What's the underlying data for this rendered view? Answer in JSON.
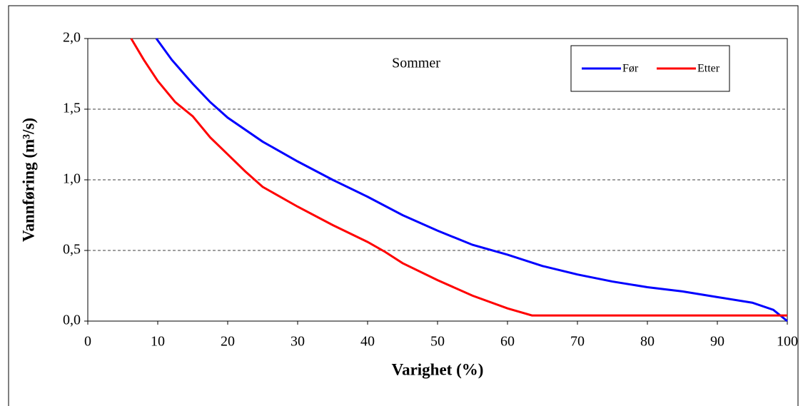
{
  "chart_data": {
    "type": "line",
    "title": "Sommer",
    "xlabel": "Varighet (%)",
    "ylabel": "Vannføring (m³/s)",
    "xlim": [
      0,
      100
    ],
    "xticks": [
      0,
      10,
      20,
      30,
      40,
      50,
      60,
      70,
      80,
      90,
      100
    ],
    "ylim": [
      0,
      2
    ],
    "yticks": [
      {
        "value": 0,
        "label": "0,0"
      },
      {
        "value": 0.5,
        "label": "0,5"
      },
      {
        "value": 1,
        "label": "1,0"
      },
      {
        "value": 1.5,
        "label": "1,5"
      },
      {
        "value": 2,
        "label": "2,0"
      }
    ],
    "grid": true,
    "legend": "upper right",
    "series": [
      {
        "name": "Før",
        "color": "#0000ff",
        "x": [
          9.8,
          12,
          15,
          17.5,
          20,
          25,
          30,
          35,
          40,
          45,
          50,
          55,
          60,
          65,
          70,
          75,
          80,
          85,
          90,
          95,
          98,
          100
        ],
        "values": [
          2.0,
          1.85,
          1.68,
          1.55,
          1.44,
          1.27,
          1.13,
          1.0,
          0.88,
          0.75,
          0.64,
          0.54,
          0.47,
          0.39,
          0.33,
          0.28,
          0.24,
          0.21,
          0.17,
          0.13,
          0.08,
          0.0
        ]
      },
      {
        "name": "Etter",
        "color": "#ff0000",
        "x": [
          6.2,
          8,
          10,
          12.5,
          15,
          17.5,
          20,
          22.5,
          25,
          30,
          35,
          40,
          42.5,
          45,
          50,
          55,
          60,
          63.5,
          70,
          100
        ],
        "values": [
          2.0,
          1.85,
          1.7,
          1.55,
          1.45,
          1.3,
          1.18,
          1.06,
          0.95,
          0.81,
          0.68,
          0.56,
          0.49,
          0.41,
          0.29,
          0.18,
          0.09,
          0.04,
          0.04,
          0.04
        ]
      }
    ]
  }
}
